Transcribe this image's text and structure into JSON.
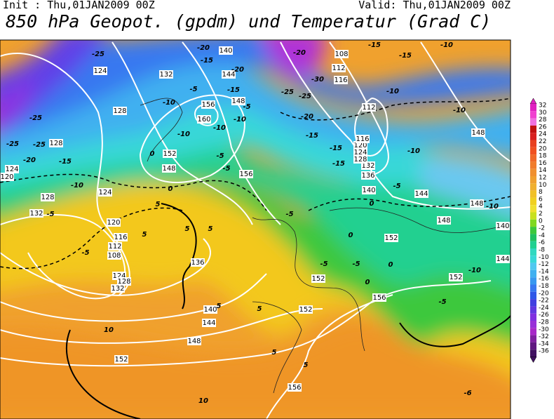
{
  "header": {
    "init": "Init : Thu,01JAN2009 00Z",
    "valid": "Valid: Thu,01JAN2009 00Z",
    "title": "850 hPa Geopot. (gpdm) und Temperatur (Grad C)"
  },
  "legend": {
    "levels": [
      32,
      30,
      28,
      26,
      24,
      22,
      20,
      18,
      16,
      14,
      12,
      10,
      8,
      6,
      4,
      2,
      0,
      -2,
      -4,
      -6,
      -8,
      -10,
      -12,
      -14,
      -16,
      -18,
      -20,
      -22,
      -24,
      -26,
      -28,
      -30,
      -32,
      -34,
      -36
    ]
  },
  "geopotential_labels": [
    "124",
    "128",
    "132",
    "140",
    "144",
    "148",
    "156",
    "160",
    "152",
    "148",
    "156",
    "128",
    "124",
    "120",
    "128",
    "132",
    "124",
    "120",
    "116",
    "112",
    "108",
    "124",
    "128",
    "132",
    "136",
    "140",
    "144",
    "148",
    "152",
    "156",
    "152",
    "156",
    "152",
    "152",
    "148",
    "152",
    "144",
    "140",
    "148",
    "144",
    "140",
    "136",
    "132",
    "128",
    "124",
    "120",
    "116",
    "112",
    "116",
    "112",
    "108",
    "148"
  ],
  "temperature_labels": [
    "-25",
    "-25",
    "-25",
    "-25",
    "-20",
    "-15",
    "-10",
    "-5",
    "-5",
    "-15",
    "-20",
    "-10",
    "-10",
    "-10",
    "-5",
    "-15",
    "-20",
    "-5",
    "-10",
    "-5",
    "-5",
    "0",
    "0",
    "5",
    "5",
    "5",
    "5",
    "5",
    "5",
    "-5",
    "-20",
    "-25",
    "-25",
    "-30",
    "-20",
    "-15",
    "-15",
    "-15",
    "-10",
    "-10",
    "-15",
    "-15",
    "-10",
    "-10",
    "-5",
    "0",
    "0",
    "-5",
    "-5",
    "0",
    "0",
    "-5",
    "-10",
    "-10",
    "10",
    "10",
    "5",
    "5",
    "-6"
  ]
}
